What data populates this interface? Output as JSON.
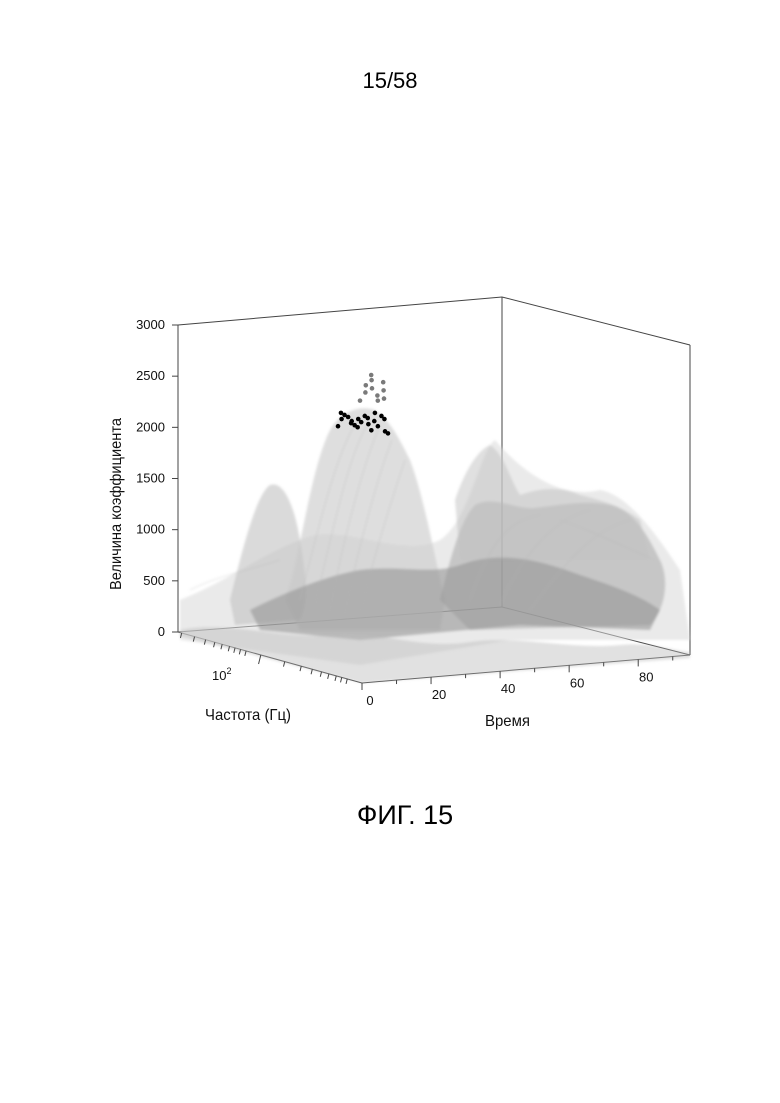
{
  "page": {
    "number": "15/58",
    "caption": "ФИГ. 15"
  },
  "colors": {
    "surface_light": "#d9d9d9",
    "surface_mid": "#b8b8b8",
    "surface_dark": "#8f8f8f",
    "points_black": "#000000",
    "points_gray": "#7a7a7a",
    "frame": "#444444"
  },
  "chart_data": {
    "type": "surface3d",
    "zlabel": "Величина коэффициента",
    "xlabel": "Время",
    "ylabel": "Частота (Гц)",
    "zlim": [
      0,
      3000
    ],
    "xlim": [
      0,
      95
    ],
    "z_ticks": [
      "0",
      "500",
      "1000",
      "1500",
      "2000",
      "2500",
      "3000"
    ],
    "x_ticks": [
      "0",
      "20",
      "40",
      "60",
      "80"
    ],
    "y_tick_label": {
      "base": "10",
      "exponent": "2"
    },
    "y_scale": "log",
    "grid": false,
    "legend": "none",
    "surface_peaks": [
      {
        "time": 22,
        "freq_rel": 0.5,
        "value": 2150
      },
      {
        "time": 40,
        "freq_rel": 0.3,
        "value": 1400
      },
      {
        "time": 60,
        "freq_rel": 0.55,
        "value": 1150
      },
      {
        "time": 70,
        "freq_rel": 0.4,
        "value": 1600
      },
      {
        "time": 82,
        "freq_rel": 0.6,
        "value": 1000
      }
    ],
    "marked_points": {
      "black": [
        2050,
        2120,
        2180,
        2160,
        2140,
        2100,
        2080,
        2060,
        2120,
        2040,
        2090,
        2150,
        2070,
        2130,
        2010,
        2180,
        2100,
        2050,
        2150,
        2000,
        2120,
        1980
      ],
      "gray": [
        2300,
        2380,
        2450,
        2550,
        2500,
        2420,
        2350,
        2300,
        2480,
        2400,
        2320
      ]
    }
  }
}
